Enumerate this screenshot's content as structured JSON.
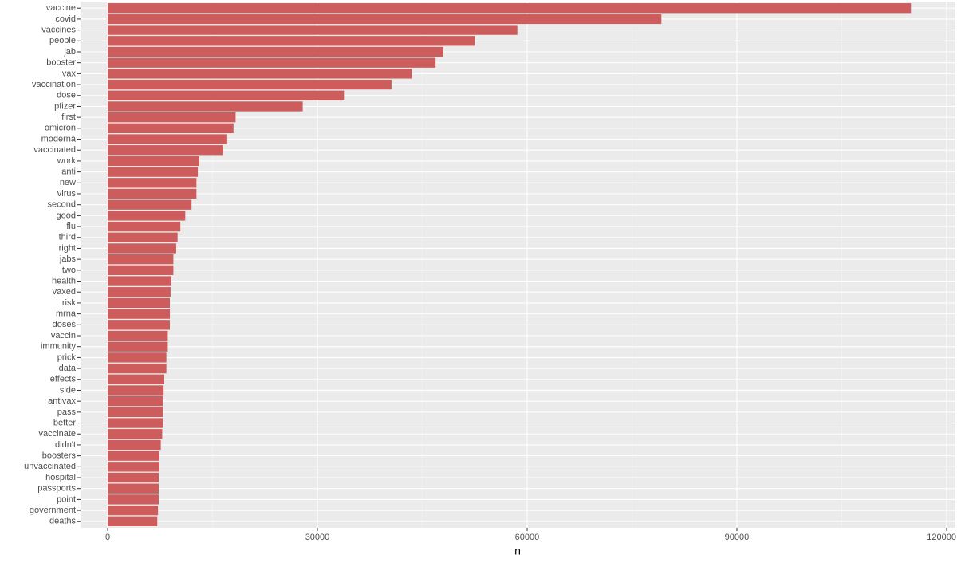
{
  "chart_data": {
    "type": "barh",
    "x_label": "n",
    "color": "#cd5c5c",
    "grid": true,
    "categories": [
      "vaccine",
      "covid",
      "vaccines",
      "people",
      "jab",
      "booster",
      "vax",
      "vaccination",
      "dose",
      "pfizer",
      "first",
      "omicron",
      "moderna",
      "vaccinated",
      "work",
      "anti",
      "new",
      "virus",
      "second",
      "good",
      "flu",
      "third",
      "right",
      "jabs",
      "two",
      "health",
      "vaxed",
      "risk",
      "mrna",
      "doses",
      "vaccin",
      "immunity",
      "prick",
      "data",
      "effects",
      "side",
      "antivax",
      "pass",
      "better",
      "vaccinate",
      "didn't",
      "boosters",
      "unvaccinated",
      "hospital",
      "passports",
      "point",
      "government",
      "deaths"
    ],
    "values": [
      114900,
      79200,
      58600,
      52500,
      48000,
      46900,
      43500,
      40600,
      33800,
      27900,
      18300,
      18000,
      17100,
      16500,
      13100,
      12900,
      12700,
      12700,
      12000,
      11100,
      10400,
      10000,
      9800,
      9400,
      9400,
      9100,
      9000,
      8900,
      8900,
      8900,
      8600,
      8600,
      8400,
      8400,
      8100,
      8000,
      7900,
      7900,
      7900,
      7800,
      7600,
      7400,
      7400,
      7300,
      7300,
      7300,
      7200,
      7100
    ],
    "xlim": [
      -3880,
      121260
    ],
    "xticks": [
      0,
      30000,
      60000,
      90000,
      120000
    ],
    "x_minor_ticks": [
      15000,
      45000,
      75000,
      105000
    ]
  }
}
